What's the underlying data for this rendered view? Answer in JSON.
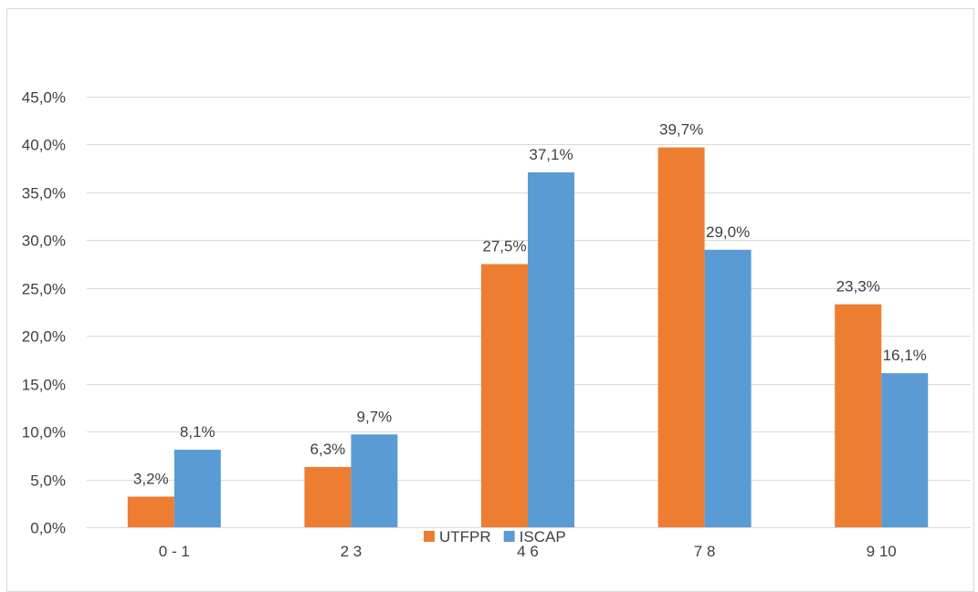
{
  "chart_data": {
    "type": "bar",
    "title": "",
    "xlabel": "",
    "ylabel": "",
    "categories": [
      "0 - 1",
      "2 3",
      "4 6",
      "7 8",
      "9 10"
    ],
    "series": [
      {
        "name": "UTFPR",
        "color": "#ed7d31",
        "values": [
          3.2,
          6.3,
          27.5,
          39.7,
          23.3
        ],
        "labels": [
          "3,2%",
          "6,3%",
          "27,5%",
          "39,7%",
          "23,3%"
        ]
      },
      {
        "name": "ISCAP",
        "color": "#5b9bd5",
        "values": [
          8.1,
          9.7,
          37.1,
          29.0,
          16.1
        ],
        "labels": [
          "8,1%",
          "9,7%",
          "37,1%",
          "29,0%",
          "16,1%"
        ]
      }
    ],
    "ylim": [
      0,
      45
    ],
    "ytick_values": [
      0,
      5,
      10,
      15,
      20,
      25,
      30,
      35,
      40,
      45
    ],
    "ytick_labels": [
      "0,0%",
      "5,0%",
      "10,0%",
      "15,0%",
      "20,0%",
      "25,0%",
      "30,0%",
      "35,0%",
      "40,0%",
      "45,0%"
    ],
    "grid": true,
    "legend": {
      "position": "bottom",
      "entries": [
        "UTFPR",
        "ISCAP"
      ]
    }
  }
}
